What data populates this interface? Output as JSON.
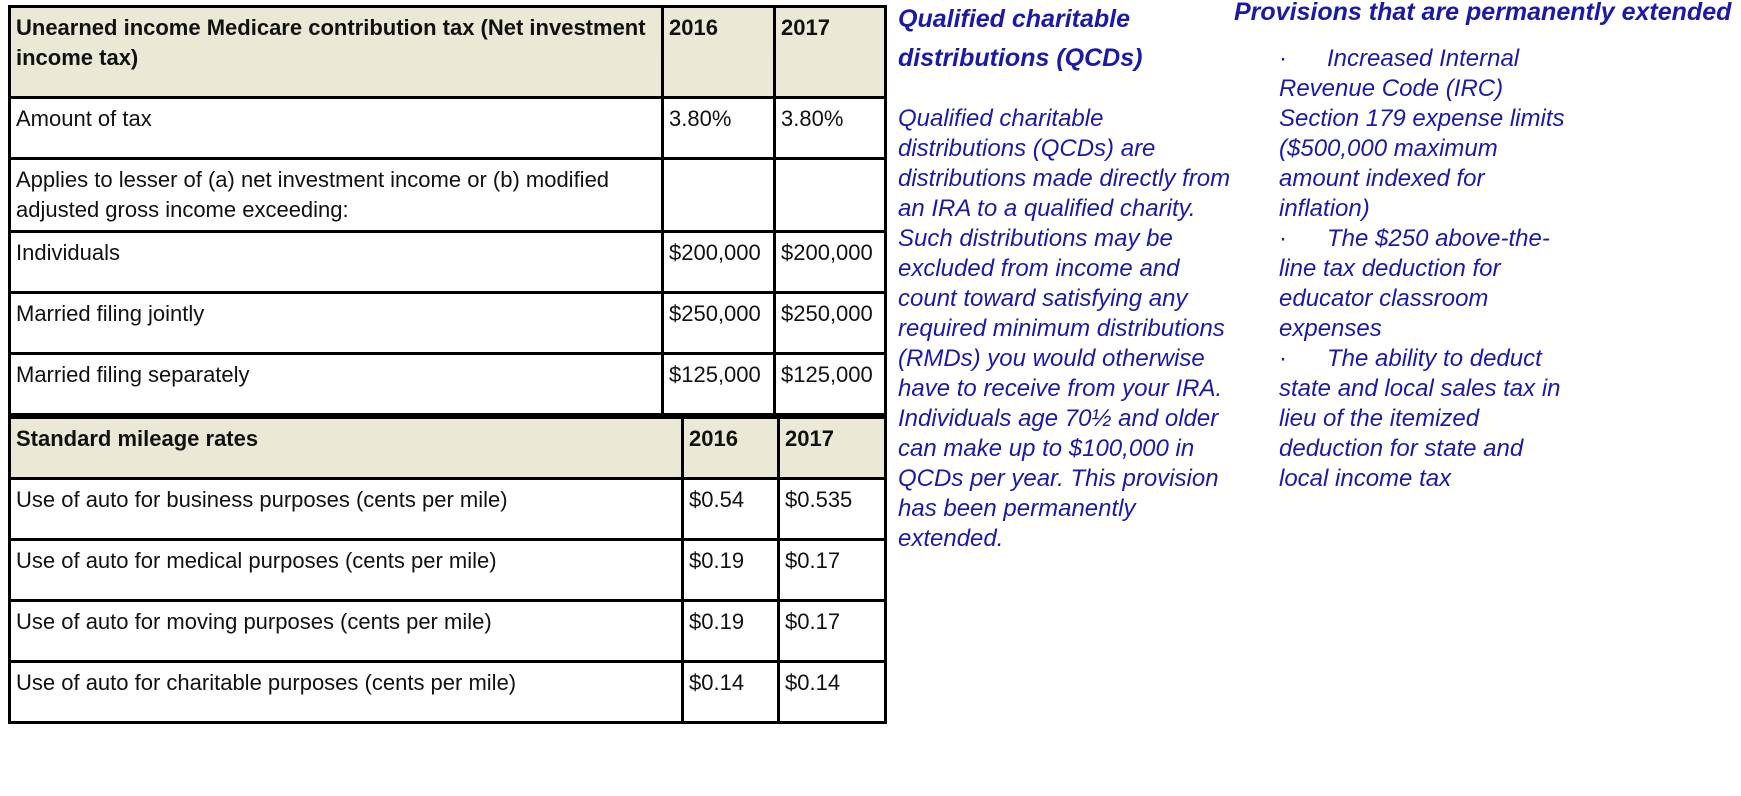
{
  "medicare_table": {
    "header": {
      "label": "Unearned income Medicare contribution tax (Net investment income tax)",
      "year1": "2016",
      "year2": "2017"
    },
    "rows": [
      {
        "label": "Amount of tax",
        "v2016": "3.80%",
        "v2017": "3.80%"
      },
      {
        "label": "Applies to lesser of (a) net investment income or (b) modified adjusted gross income exceeding:",
        "v2016": "",
        "v2017": ""
      },
      {
        "label": "Individuals",
        "v2016": "$200,000",
        "v2017": "$200,000"
      },
      {
        "label": "Married filing jointly",
        "v2016": "$250,000",
        "v2017": "$250,000"
      },
      {
        "label": "Married filing separately",
        "v2016": "$125,000",
        "v2017": "$125,000"
      }
    ]
  },
  "mileage_table": {
    "header": {
      "label": "Standard mileage rates",
      "year1": "2016",
      "year2": "2017"
    },
    "rows": [
      {
        "label": "Use of auto for business purposes (cents per mile)",
        "v2016": "$0.54",
        "v2017": "$0.535"
      },
      {
        "label": "Use of auto for medical purposes (cents per mile)",
        "v2016": "$0.19",
        "v2017": "$0.17"
      },
      {
        "label": "Use of auto for moving purposes (cents per mile)",
        "v2016": "$0.19",
        "v2017": "$0.17"
      },
      {
        "label": "Use of auto for charitable purposes (cents per mile)",
        "v2016": "$0.14",
        "v2017": "$0.14"
      }
    ]
  },
  "qcd": {
    "heading": "Qualified charitable distributions (QCDs)",
    "body": "Qualified charitable distributions (QCDs) are distributions made directly from an IRA to a qualified charity. Such distributions may be excluded from income and count toward satisfying any required minimum distributions (RMDs) you would otherwise have to receive from your IRA. Individuals age 70½ and older can make up to $100,000 in QCDs per year. This provision has been permanently extended."
  },
  "provisions": {
    "heading": "Provisions that are permanently extended",
    "bullet": "·",
    "items": [
      "Increased Internal Revenue Code (IRC) Section 179 expense limits ($500,000 maximum amount indexed for inflation)",
      "The $250 above-the-line tax deduction for educator classroom expenses",
      "The ability to deduct state and local sales tax in lieu of the itemized deduction for state and local income tax"
    ]
  },
  "colors": {
    "header_bg": "#ebe9d6",
    "accent_text": "#1b1aa8",
    "border": "#000000"
  }
}
